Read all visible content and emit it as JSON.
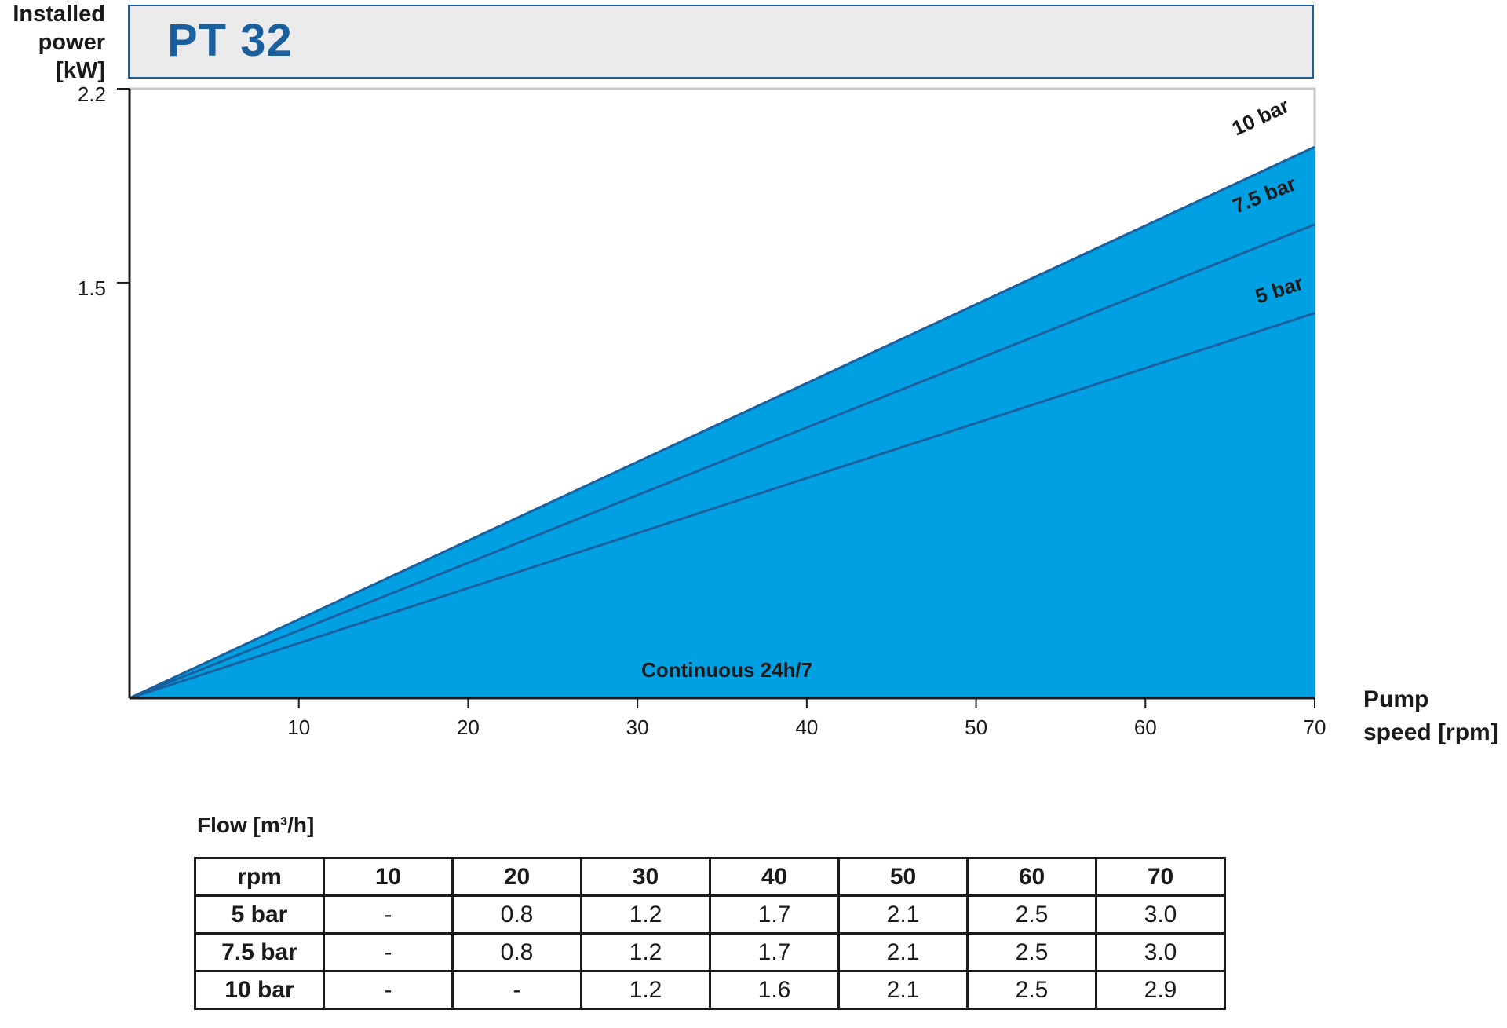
{
  "chart_data": {
    "type": "area",
    "title": "PT 32",
    "xlabel_lines": [
      "Pump",
      "speed [rpm]"
    ],
    "ylabel_lines": [
      "Installed",
      "power",
      "[kW]"
    ],
    "xlim": [
      0,
      70
    ],
    "ylim": [
      0,
      2.2
    ],
    "x_ticks": [
      10,
      20,
      30,
      40,
      50,
      60,
      70
    ],
    "y_ticks": [
      1.5,
      2.2
    ],
    "series": [
      {
        "name": "10 bar",
        "x": [
          0,
          70
        ],
        "y": [
          0,
          1.99
        ]
      },
      {
        "name": "7.5 bar",
        "x": [
          0,
          70
        ],
        "y": [
          0,
          1.71
        ]
      },
      {
        "name": "5 bar",
        "x": [
          0,
          70
        ],
        "y": [
          0,
          1.39
        ]
      }
    ],
    "region_label": "Continuous 24h/7",
    "colors": {
      "fill": "#00a0e3",
      "line": "#1a5f9e",
      "title": "#1a5f9e"
    }
  },
  "table": {
    "caption": "Flow [m³/h]",
    "header": [
      "rpm",
      "10",
      "20",
      "30",
      "40",
      "50",
      "60",
      "70"
    ],
    "rows": [
      [
        "5 bar",
        "-",
        "0.8",
        "1.2",
        "1.7",
        "2.1",
        "2.5",
        "3.0"
      ],
      [
        "7.5 bar",
        "-",
        "0.8",
        "1.2",
        "1.7",
        "2.1",
        "2.5",
        "3.0"
      ],
      [
        "10 bar",
        "-",
        "-",
        "1.2",
        "1.6",
        "2.1",
        "2.5",
        "2.9"
      ]
    ]
  }
}
